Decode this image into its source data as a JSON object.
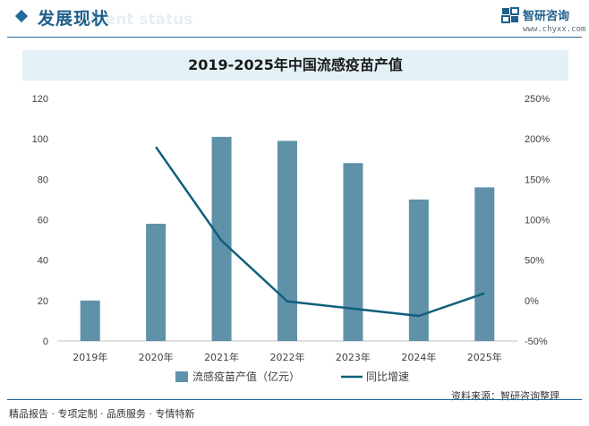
{
  "header": {
    "title": "发展现状",
    "subtitle": "ment status",
    "brand_name": "智研咨询",
    "brand_url": "www.chyxx.com"
  },
  "chart_data": {
    "type": "bar",
    "title": "2019-2025年中国流感疫苗产值",
    "categories": [
      "2019年",
      "2020年",
      "2021年",
      "2022年",
      "2023年",
      "2024年",
      "2025年"
    ],
    "series": [
      {
        "name": "流感疫苗产值（亿元）",
        "type": "bar",
        "axis": "left",
        "color": "#5f91a9",
        "values": [
          20,
          58,
          101,
          99,
          88,
          70,
          76
        ]
      },
      {
        "name": "同比增速",
        "type": "line",
        "axis": "right",
        "color": "#0f5f7c",
        "values": [
          null,
          190,
          74,
          -1,
          -10,
          -19,
          9
        ]
      }
    ],
    "y_left": {
      "min": 0,
      "max": 120,
      "ticks": [
        "0",
        "20",
        "40",
        "60",
        "80",
        "100",
        "120"
      ]
    },
    "y_right": {
      "min": -50,
      "max": 250,
      "ticks": [
        "-50%",
        "0%",
        "50%",
        "100%",
        "150%",
        "200%",
        "250%"
      ]
    },
    "grid": false,
    "legend_position": "bottom"
  },
  "footer": {
    "left": "精品报告 · 专项定制 · 品质服务 · 专情特新",
    "source": "资料来源：智研咨询整理"
  }
}
